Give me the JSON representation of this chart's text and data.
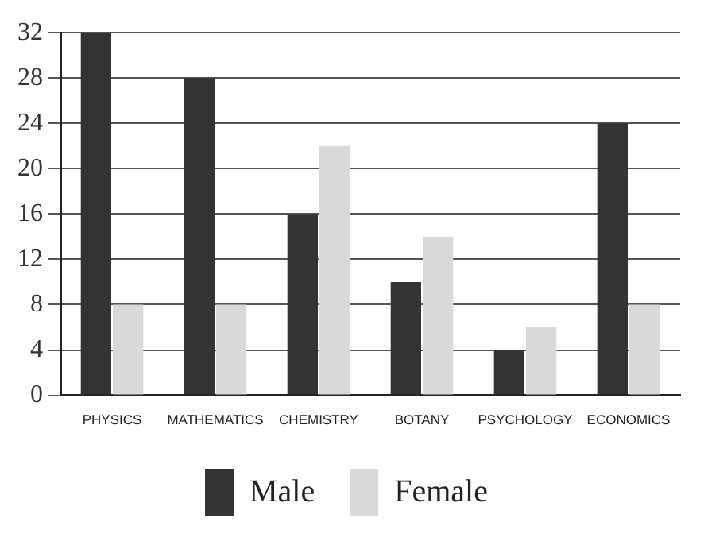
{
  "chart_data": {
    "type": "bar",
    "categories": [
      "PHYSICS",
      "MATHEMATICS",
      "CHEMISTRY",
      "BOTANY",
      "PSYCHOLOGY",
      "ECONOMICS"
    ],
    "series": [
      {
        "name": "Male",
        "color": "#333333",
        "values": [
          32,
          28,
          16,
          10,
          4,
          24
        ]
      },
      {
        "name": "Female",
        "color": "#d9d9d9",
        "values": [
          8,
          8,
          22,
          14,
          6,
          8
        ]
      }
    ],
    "ylim": [
      0,
      32
    ],
    "yticks": [
      0,
      4,
      8,
      12,
      16,
      20,
      24,
      28,
      32
    ],
    "grid": "y",
    "legend": "bottom"
  }
}
